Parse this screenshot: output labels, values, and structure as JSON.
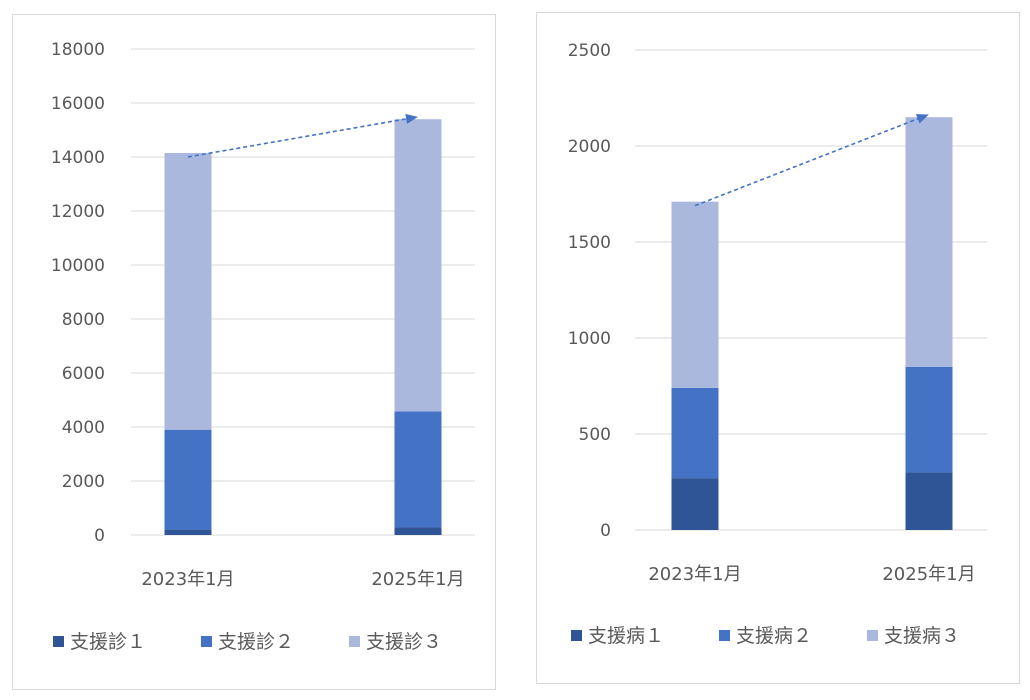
{
  "chart_data": [
    {
      "type": "bar",
      "stacked": true,
      "categories": [
        "2023年1月",
        "2025年1月"
      ],
      "series": [
        {
          "name": "支援診１",
          "values": [
            200,
            280
          ],
          "color": "#2f5597"
        },
        {
          "name": "支援診２",
          "values": [
            3700,
            4300
          ],
          "color": "#4472c4"
        },
        {
          "name": "支援診３",
          "values": [
            10250,
            10820
          ],
          "color": "#a9b8dc"
        }
      ],
      "ylim": [
        0,
        18000
      ],
      "yticks": [
        0,
        2000,
        4000,
        6000,
        8000,
        10000,
        12000,
        14000,
        16000,
        18000
      ],
      "grid": true,
      "legend": "bottom",
      "trend_arrow": true
    },
    {
      "type": "bar",
      "stacked": true,
      "categories": [
        "2023年1月",
        "2025年1月"
      ],
      "series": [
        {
          "name": "支援病１",
          "values": [
            270,
            300
          ],
          "color": "#2f5597"
        },
        {
          "name": "支援病２",
          "values": [
            470,
            550
          ],
          "color": "#4472c4"
        },
        {
          "name": "支援病３",
          "values": [
            970,
            1300
          ],
          "color": "#a9b8dc"
        }
      ],
      "ylim": [
        0,
        2500
      ],
      "yticks": [
        0,
        500,
        1000,
        1500,
        2000,
        2500
      ],
      "grid": true,
      "legend": "bottom",
      "trend_arrow": true
    }
  ]
}
